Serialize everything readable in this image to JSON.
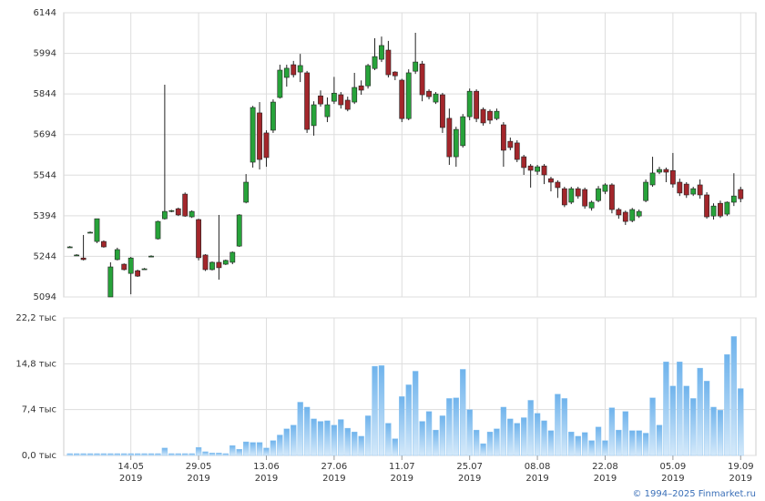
{
  "chart_data": [
    {
      "type": "candlestick",
      "categories": [
        null,
        null,
        null,
        null,
        null,
        null,
        null,
        null,
        null,
        [
          "14.05",
          "2019"
        ],
        null,
        null,
        null,
        null,
        null,
        null,
        null,
        null,
        null,
        [
          "29.05",
          "2019"
        ],
        null,
        null,
        null,
        null,
        null,
        null,
        null,
        null,
        null,
        [
          "13.06",
          "2019"
        ],
        null,
        null,
        null,
        null,
        null,
        null,
        null,
        null,
        null,
        [
          "27.06",
          "2019"
        ],
        null,
        null,
        null,
        null,
        null,
        null,
        null,
        null,
        null,
        [
          "11.07",
          "2019"
        ],
        null,
        null,
        null,
        null,
        null,
        null,
        null,
        null,
        null,
        [
          "25.07",
          "2019"
        ],
        null,
        null,
        null,
        null,
        null,
        null,
        null,
        null,
        null,
        [
          "08.08",
          "2019"
        ],
        null,
        null,
        null,
        null,
        null,
        null,
        null,
        null,
        null,
        [
          "22.08",
          "2019"
        ],
        null,
        null,
        null,
        null,
        null,
        null,
        null,
        null,
        null,
        [
          "05.09",
          "2019"
        ],
        null,
        null,
        null,
        null,
        null,
        null,
        null,
        null,
        null,
        [
          "19.09",
          "2019"
        ]
      ],
      "open": [
        5279,
        5249,
        5238,
        5333,
        5299,
        5299,
        5094,
        5232,
        5215,
        5181,
        5191,
        5198,
        5245,
        5309,
        5383,
        5410,
        5420,
        5474,
        5390,
        5380,
        5249,
        5195,
        5222,
        5215,
        5222,
        5282,
        5444,
        5592,
        5774,
        5700,
        5710,
        5831,
        5905,
        5952,
        5925,
        5922,
        5727,
        5837,
        5760,
        5817,
        5841,
        5821,
        5814,
        5874,
        5874,
        5938,
        5972,
        6006,
        5925,
        5895,
        5753,
        5928,
        5955,
        5854,
        5814,
        5841,
        5754,
        5612,
        5653,
        5760,
        5854,
        5787,
        5780,
        5753,
        5730,
        5669,
        5663,
        5612,
        5578,
        5558,
        5578,
        5531,
        5518,
        5494,
        5444,
        5494,
        5491,
        5423,
        5450,
        5484,
        5508,
        5417,
        5407,
        5376,
        5393,
        5450,
        5508,
        5555,
        5565,
        5561,
        5518,
        5511,
        5474,
        5508,
        5471,
        5393,
        5440,
        5400,
        5444,
        5491
      ],
      "high": [
        5282,
        5252,
        5323,
        5336,
        5383,
        5303,
        5222,
        5276,
        5218,
        5242,
        5195,
        5201,
        5248,
        5376,
        5878,
        5416,
        5424,
        5480,
        5414,
        5383,
        5252,
        5225,
        5397,
        5232,
        5262,
        5400,
        5548,
        5800,
        5814,
        5710,
        5824,
        5952,
        5952,
        5966,
        5992,
        5929,
        5817,
        5857,
        5831,
        5907,
        5851,
        5834,
        5922,
        5894,
        5955,
        6050,
        6056,
        6040,
        5928,
        5900,
        5935,
        6070,
        5966,
        5861,
        5851,
        5848,
        5790,
        5723,
        5770,
        5864,
        5861,
        5794,
        5787,
        5790,
        5740,
        5683,
        5673,
        5619,
        5585,
        5582,
        5585,
        5538,
        5525,
        5501,
        5501,
        5501,
        5498,
        5450,
        5504,
        5514,
        5514,
        5423,
        5413,
        5423,
        5417,
        5528,
        5612,
        5575,
        5572,
        5626,
        5531,
        5518,
        5501,
        5528,
        5481,
        5440,
        5450,
        5447,
        5551,
        5501
      ],
      "low": [
        5276,
        5246,
        5229,
        5330,
        5293,
        5276,
        5094,
        5229,
        5192,
        5104,
        5168,
        5195,
        5242,
        5306,
        5380,
        5407,
        5393,
        5390,
        5386,
        5229,
        5190,
        5192,
        5158,
        5212,
        5215,
        5279,
        5440,
        5572,
        5565,
        5575,
        5700,
        5827,
        5871,
        5905,
        5888,
        5700,
        5690,
        5797,
        5740,
        5807,
        5790,
        5780,
        5807,
        5841,
        5864,
        5932,
        5962,
        5905,
        5895,
        5740,
        5747,
        5918,
        5817,
        5824,
        5807,
        5700,
        5582,
        5575,
        5646,
        5747,
        5740,
        5727,
        5733,
        5747,
        5575,
        5636,
        5592,
        5545,
        5498,
        5545,
        5511,
        5484,
        5460,
        5426,
        5437,
        5457,
        5420,
        5413,
        5444,
        5474,
        5403,
        5383,
        5360,
        5370,
        5386,
        5444,
        5501,
        5548,
        5518,
        5498,
        5467,
        5460,
        5467,
        5457,
        5383,
        5380,
        5386,
        5393,
        5430,
        5444
      ],
      "close": [
        5279,
        5249,
        5232,
        5333,
        5383,
        5279,
        5205,
        5269,
        5195,
        5238,
        5171,
        5198,
        5245,
        5373,
        5410,
        5413,
        5397,
        5393,
        5410,
        5239,
        5195,
        5222,
        5202,
        5229,
        5259,
        5397,
        5518,
        5794,
        5602,
        5609,
        5814,
        5932,
        5939,
        5915,
        5949,
        5713,
        5804,
        5807,
        5804,
        5847,
        5804,
        5787,
        5868,
        5858,
        5949,
        5982,
        6023,
        5915,
        5911,
        5753,
        5922,
        5962,
        5841,
        5834,
        5844,
        5720,
        5612,
        5713,
        5760,
        5854,
        5753,
        5737,
        5747,
        5780,
        5636,
        5646,
        5602,
        5572,
        5562,
        5575,
        5545,
        5518,
        5498,
        5434,
        5494,
        5467,
        5430,
        5444,
        5494,
        5508,
        5417,
        5397,
        5373,
        5417,
        5410,
        5518,
        5552,
        5565,
        5555,
        5511,
        5478,
        5471,
        5494,
        5471,
        5390,
        5430,
        5393,
        5444,
        5467,
        5457
      ],
      "up_color": "#27a33a",
      "down_color": "#a3262b",
      "ylim": [
        5094,
        6144
      ],
      "yticks": [
        5094,
        5244,
        5394,
        5544,
        5694,
        5844,
        5994,
        6144
      ],
      "grid": true
    },
    {
      "type": "bar",
      "color": "#8cc4f0",
      "values": [
        0.3,
        0.3,
        0.3,
        0.3,
        0.3,
        0.3,
        0.3,
        0.3,
        0.3,
        0.3,
        0.3,
        0.3,
        0.3,
        0.3,
        1.2,
        0.3,
        0.3,
        0.3,
        0.3,
        1.3,
        0.6,
        0.4,
        0.4,
        0.3,
        1.6,
        1.0,
        2.2,
        2.1,
        2.1,
        1.2,
        2.4,
        3.3,
        4.3,
        4.9,
        8.6,
        7.8,
        5.9,
        5.5,
        5.6,
        4.9,
        5.8,
        4.4,
        3.8,
        3.1,
        6.4,
        14.4,
        14.5,
        5.2,
        2.7,
        9.5,
        11.4,
        13.6,
        5.5,
        7.1,
        4.1,
        6.4,
        9.2,
        9.3,
        13.9,
        7.4,
        4.1,
        1.9,
        3.8,
        4.3,
        7.8,
        5.9,
        5.2,
        6.1,
        8.9,
        6.8,
        5.6,
        4.0,
        9.9,
        9.2,
        3.8,
        3.1,
        3.7,
        2.4,
        4.6,
        2.4,
        7.7,
        4.1,
        7.1,
        4.0,
        4.0,
        3.6,
        9.3,
        4.9,
        15.1,
        11.2,
        15.1,
        11.2,
        9.2,
        14.1,
        12.0,
        7.8,
        7.3,
        16.3,
        19.2,
        10.8
      ],
      "ylim": [
        0,
        22.2
      ],
      "yticks": [
        {
          "value": 0,
          "label": "0,0 тыс"
        },
        {
          "value": 7.4,
          "label": "7,4 тыс"
        },
        {
          "value": 14.8,
          "label": "14,8 тыс"
        },
        {
          "value": 22.2,
          "label": "22,2 тыс"
        }
      ],
      "grid": true
    }
  ],
  "footer": "© 1994–2025 Finmarket.ru"
}
